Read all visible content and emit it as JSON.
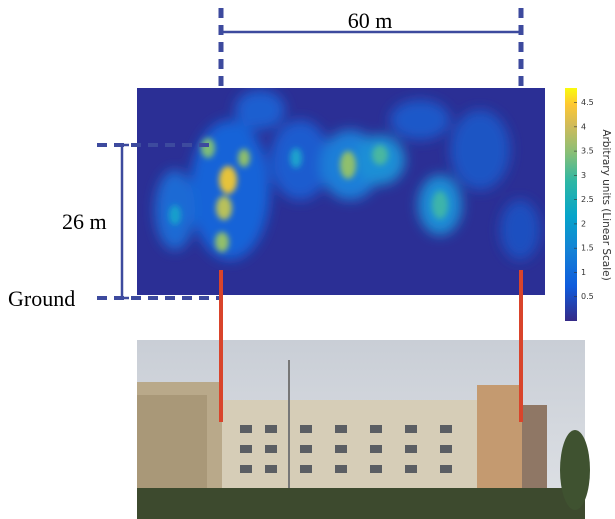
{
  "annotations": {
    "width": "60 m",
    "height": "26 m",
    "ground": "Ground"
  },
  "colorbar": {
    "label": "Arbitrary units (Linear Scale)",
    "lim": [
      0,
      4.8
    ],
    "ticks": [
      0.5,
      1,
      1.5,
      2,
      2.5,
      3,
      3.5,
      4,
      4.5
    ]
  }
}
